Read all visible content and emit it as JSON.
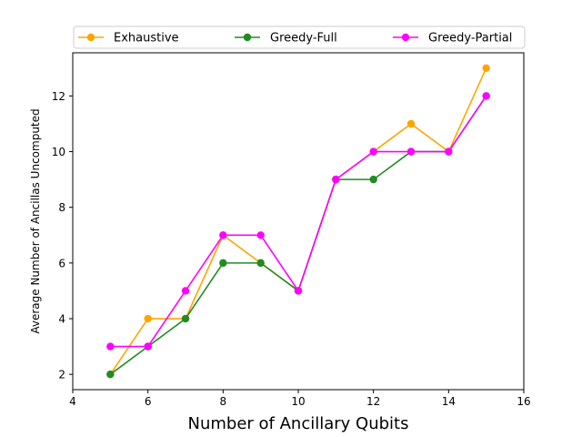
{
  "chart_data": {
    "type": "line",
    "xlabel": "Number of Ancillary Qubits",
    "ylabel": "Average Number of Ancillas Uncomputed",
    "xlim": [
      4,
      16
    ],
    "ylim": [
      1.45,
      13.55
    ],
    "xticks": [
      4,
      6,
      8,
      10,
      12,
      14,
      16
    ],
    "yticks": [
      2,
      4,
      6,
      8,
      10,
      12
    ],
    "grid": false,
    "legend_position": "top",
    "x": [
      5,
      6,
      7,
      8,
      9,
      10,
      11,
      12,
      13,
      14,
      15
    ],
    "series": [
      {
        "name": "Exhaustive",
        "color": "#FFA500",
        "values": [
          2,
          4,
          4,
          7,
          6,
          5,
          9,
          10,
          11,
          10,
          13
        ]
      },
      {
        "name": "Greedy-Full",
        "color": "#228B22",
        "values": [
          2,
          3,
          4,
          6,
          6,
          5,
          9,
          9,
          10,
          10,
          12
        ]
      },
      {
        "name": "Greedy-Partial",
        "color": "#FF00FF",
        "values": [
          3,
          3,
          5,
          7,
          7,
          5,
          9,
          10,
          10,
          10,
          12
        ]
      }
    ]
  }
}
